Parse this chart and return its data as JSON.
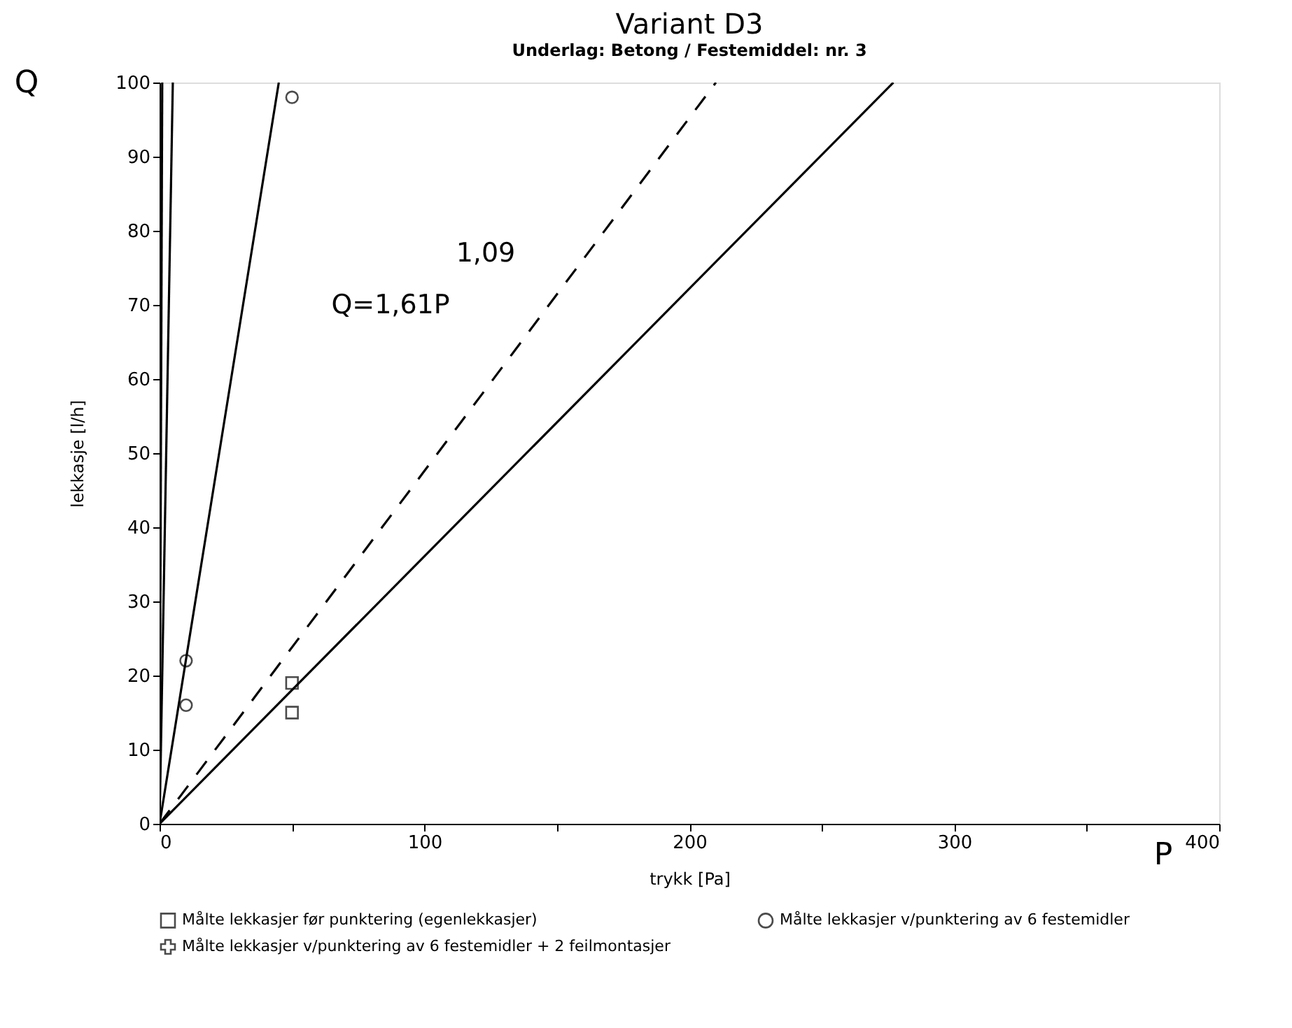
{
  "chart_data": {
    "type": "scatter",
    "title": "Variant D3",
    "subtitle": "Underlag: Betong / Festemiddel: nr. 3",
    "xlabel": "trykk [Pa]",
    "ylabel": "lekkasje [l/h]",
    "xlim": [
      0,
      400
    ],
    "ylim": [
      0,
      100
    ],
    "xticks": [
      0,
      {
        "value": 50,
        "label": null
      },
      100,
      {
        "value": 150,
        "label": null
      },
      200,
      {
        "value": 250,
        "label": null
      },
      300,
      {
        "value": 350,
        "label": null
      },
      400
    ],
    "yticks": [
      0,
      10,
      20,
      30,
      40,
      50,
      60,
      70,
      80,
      90,
      100
    ],
    "grid": false,
    "legend": "bottom",
    "series": [
      {
        "name": "Målte lekkasjer før punktering (egenlekkasjer)",
        "marker": "square",
        "color": "#000000",
        "x": [
          50,
          50
        ],
        "values": [
          19,
          15
        ]
      },
      {
        "name": "Målte lekkasjer v/punktering av 6 festemidler",
        "marker": "circle",
        "color": "#000000",
        "x": [
          10,
          10,
          50
        ],
        "values": [
          22,
          16,
          98
        ]
      },
      {
        "name": "Målte lekkasjer v/punktering av 6 festemidler + 2 feilmontasjer",
        "marker": "cross",
        "color": "#000000"
      },
      {
        "type": "line",
        "line_style": "solid",
        "color": "#000000",
        "x": [
          0,
          1
        ],
        "values": [
          0,
          100
        ]
      },
      {
        "type": "line",
        "line_style": "solid",
        "color": "#000000",
        "x": [
          0,
          5
        ],
        "values": [
          0,
          100
        ]
      },
      {
        "type": "line",
        "line_style": "solid",
        "color": "#000000",
        "x": [
          0,
          45
        ],
        "values": [
          0,
          100
        ]
      },
      {
        "type": "line",
        "line_style": "dashed",
        "color": "#000000",
        "x": [
          0,
          210
        ],
        "values": [
          0,
          100
        ]
      },
      {
        "type": "line",
        "line_style": "solid",
        "color": "#000000",
        "x": [
          0,
          277
        ],
        "values": [
          0,
          100
        ]
      }
    ],
    "annotations": [
      "1,09",
      "Q=1,61P",
      "Q",
      "P"
    ]
  }
}
